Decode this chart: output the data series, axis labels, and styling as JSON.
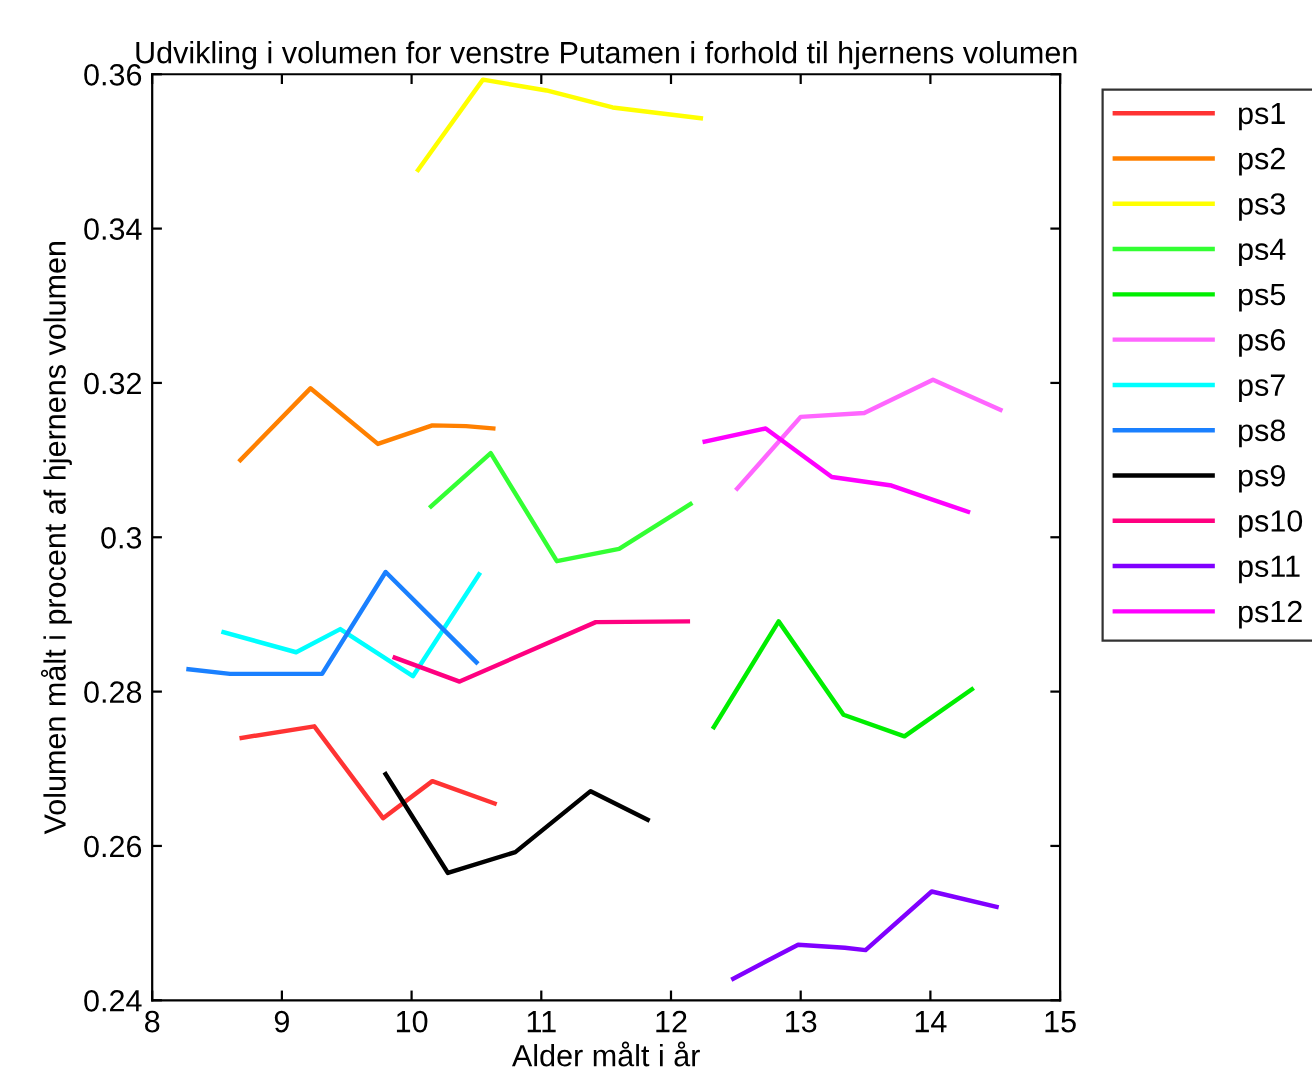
{
  "chart_data": {
    "type": "line",
    "title": "Udvikling i volumen for venstre Putamen i forhold til hjernens volumen",
    "xlabel": "Alder målt i år",
    "ylabel": "Volumen målt i procent af hjernens volumen",
    "xlim": [
      8,
      15
    ],
    "ylim": [
      0.24,
      0.36
    ],
    "xticks": [
      8,
      9,
      10,
      11,
      12,
      13,
      14,
      15
    ],
    "yticks": [
      0.24,
      0.26,
      0.28,
      0.3,
      0.32,
      0.34,
      0.36
    ],
    "grid": false,
    "legend": "right",
    "marker": "none",
    "line_style": "solid",
    "series": [
      {
        "name": "ps1",
        "color": "#ff3333",
        "x": [
          8.69,
          9.25,
          9.78,
          10.16,
          10.64
        ],
        "values": [
          0.274,
          0.2755,
          0.2636,
          0.2684,
          0.2655
        ]
      },
      {
        "name": "ps2",
        "color": "#ff8000",
        "x": [
          8.68,
          9.22,
          9.74,
          10.16,
          10.42,
          10.63
        ],
        "values": [
          0.31,
          0.3193,
          0.3121,
          0.3145,
          0.3144,
          0.3141
        ]
      },
      {
        "name": "ps3",
        "color": "#ffff00",
        "x": [
          10.05,
          10.55,
          11.04,
          11.55,
          12.23
        ],
        "values": [
          0.3476,
          0.3593,
          0.3579,
          0.3557,
          0.3543
        ]
      },
      {
        "name": "ps4",
        "color": "#33ff33",
        "x": [
          10.15,
          10.61,
          11.12,
          11.6,
          12.15
        ],
        "values": [
          0.304,
          0.3109,
          0.2969,
          0.2985,
          0.3043
        ]
      },
      {
        "name": "ps5",
        "color": "#00ee00",
        "x": [
          12.33,
          12.83,
          13.33,
          13.8,
          14.32
        ],
        "values": [
          0.2754,
          0.2891,
          0.277,
          0.2742,
          0.2803
        ]
      },
      {
        "name": "ps6",
        "color": "#ff66ff",
        "x": [
          12.51,
          13.0,
          13.49,
          14.02,
          14.54
        ],
        "values": [
          0.3063,
          0.3156,
          0.3161,
          0.3204,
          0.3165
        ]
      },
      {
        "name": "ps7",
        "color": "#00ffff",
        "x": [
          8.55,
          9.11,
          9.45,
          10.01,
          10.52
        ],
        "values": [
          0.2877,
          0.2851,
          0.2881,
          0.282,
          0.2952
        ]
      },
      {
        "name": "ps8",
        "color": "#1a80ff",
        "x": [
          8.28,
          8.6,
          9.31,
          9.8,
          10.5
        ],
        "values": [
          0.2829,
          0.2823,
          0.2823,
          0.2955,
          0.2838
        ]
      },
      {
        "name": "ps9",
        "color": "#000000",
        "x": [
          9.8,
          10.28,
          10.8,
          11.38,
          11.82
        ],
        "values": [
          0.2693,
          0.2565,
          0.2592,
          0.2671,
          0.2634
        ]
      },
      {
        "name": "ps10",
        "color": "#ff0080",
        "x": [
          9.87,
          10.37,
          11.42,
          12.13
        ],
        "values": [
          0.2844,
          0.2813,
          0.289,
          0.2891
        ]
      },
      {
        "name": "ps11",
        "color": "#8000ff",
        "x": [
          12.48,
          12.98,
          13.34,
          13.5,
          14.01,
          14.51
        ],
        "values": [
          0.2428,
          0.2472,
          0.2468,
          0.2465,
          0.2541,
          0.2521
        ]
      },
      {
        "name": "ps12",
        "color": "#ff00ff",
        "x": [
          12.26,
          12.73,
          13.24,
          13.7,
          14.29
        ],
        "values": [
          0.3124,
          0.3141,
          0.3078,
          0.3067,
          0.3033
        ]
      }
    ]
  }
}
